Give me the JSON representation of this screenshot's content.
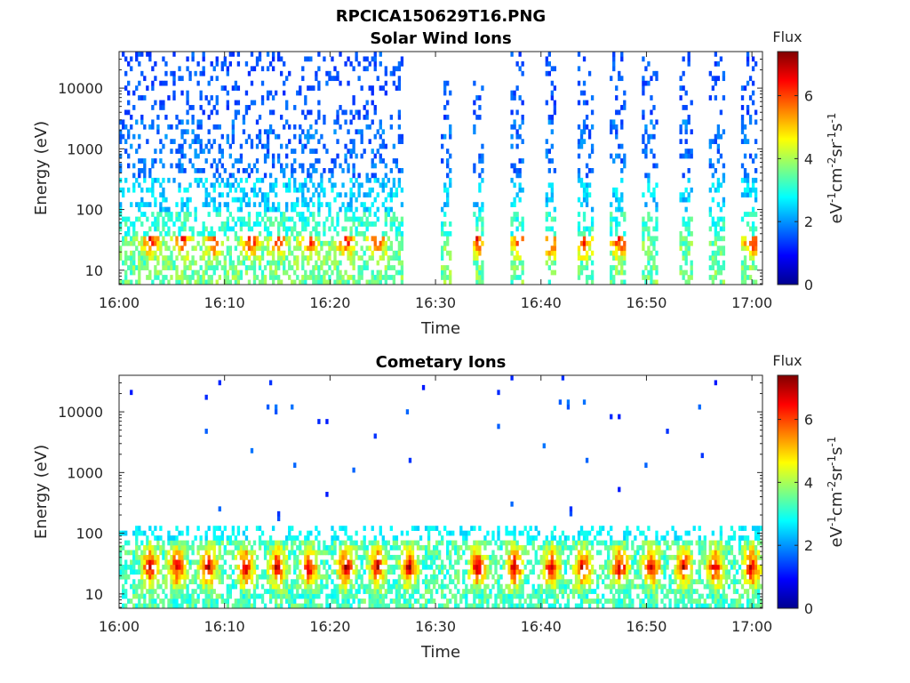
{
  "figure": {
    "title": "RPCICA150629T16.PNG"
  },
  "chart_data": [
    {
      "type": "heatmap",
      "title": "Solar Wind Ions",
      "xlabel": "Time",
      "ylabel": "Energy (eV)",
      "x_ticks": [
        "16:00",
        "16:10",
        "16:20",
        "16:30",
        "16:40",
        "16:50",
        "17:00"
      ],
      "x_range_minutes": [
        0,
        61
      ],
      "y_ticks": [
        "10",
        "100",
        "1000",
        "10000"
      ],
      "y_scale": "log",
      "y_range_eV": [
        5.8,
        40000
      ],
      "colorbar": {
        "label": "Flux",
        "units": "eV-1cm-2sr-1s-1",
        "ticks": [
          "0",
          "2",
          "4",
          "6"
        ],
        "range": [
          0,
          7.4
        ],
        "colormap": "jet"
      },
      "activity_windows_minutes": [
        [
          0,
          27
        ],
        [
          30.5,
          31.5
        ],
        [
          33.5,
          34.5
        ],
        [
          37,
          38.5
        ],
        [
          40.5,
          41.5
        ],
        [
          43.5,
          45
        ],
        [
          46.5,
          48
        ],
        [
          49.5,
          51
        ],
        [
          53,
          54.5
        ],
        [
          56,
          57.5
        ],
        [
          59,
          60.5
        ]
      ],
      "peak_flux_times_minutes": [
        3,
        6,
        9,
        12.5,
        15,
        18,
        21.5,
        24.5,
        34,
        38,
        41,
        44,
        47.5,
        60
      ],
      "peak_flux_energy_eV": 30,
      "peak_flux_value": 7
    },
    {
      "type": "heatmap",
      "title": "Cometary Ions",
      "xlabel": "Time",
      "ylabel": "Energy (eV)",
      "x_ticks": [
        "16:00",
        "16:10",
        "16:20",
        "16:30",
        "16:40",
        "16:50",
        "17:00"
      ],
      "x_range_minutes": [
        0,
        61
      ],
      "y_ticks": [
        "10",
        "100",
        "1000",
        "10000"
      ],
      "y_scale": "log",
      "y_range_eV": [
        5.8,
        40000
      ],
      "colorbar": {
        "label": "Flux",
        "units": "eV-1cm-2sr-1s-1",
        "ticks": [
          "0",
          "2",
          "4",
          "6"
        ],
        "range": [
          0,
          7.4
        ],
        "colormap": "jet"
      },
      "band_energy_range_eV": [
        6,
        120
      ],
      "peak_flux_times_minutes": [
        3,
        5.5,
        8.5,
        12,
        15,
        18,
        21.5,
        24.5,
        27.5,
        34,
        37.5,
        41,
        44,
        47.5,
        50.5,
        53.5,
        56.5,
        60
      ],
      "peak_flux_energy_eV": 28,
      "peak_flux_value": 7.2
    }
  ]
}
